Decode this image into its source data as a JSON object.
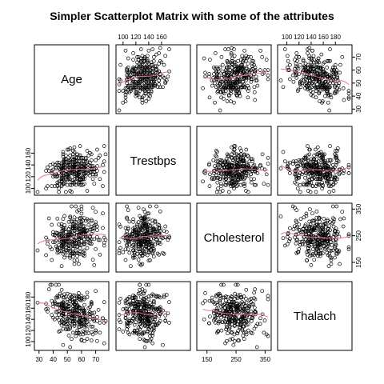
{
  "chart_data": {
    "type": "scatter",
    "title": "Simpler Scatterplot Matrix with some of the attributes",
    "variables": [
      "Age",
      "Trestbps",
      "Cholesterol",
      "Thalach"
    ],
    "ranges": {
      "Age": [
        29,
        77
      ],
      "Trestbps": [
        94,
        200
      ],
      "Cholesterol": [
        126,
        360
      ],
      "Thalach": [
        90,
        202
      ]
    },
    "ticks": {
      "Age": [
        30,
        40,
        50,
        60,
        70
      ],
      "Trestbps": [
        100,
        120,
        140,
        160
      ],
      "Cholesterol": [
        150,
        250,
        350
      ],
      "Thalach": [
        100,
        120,
        140,
        160,
        180
      ]
    },
    "n_points": 303,
    "smoother_color": "#e8728a",
    "point_color": "#000000"
  }
}
